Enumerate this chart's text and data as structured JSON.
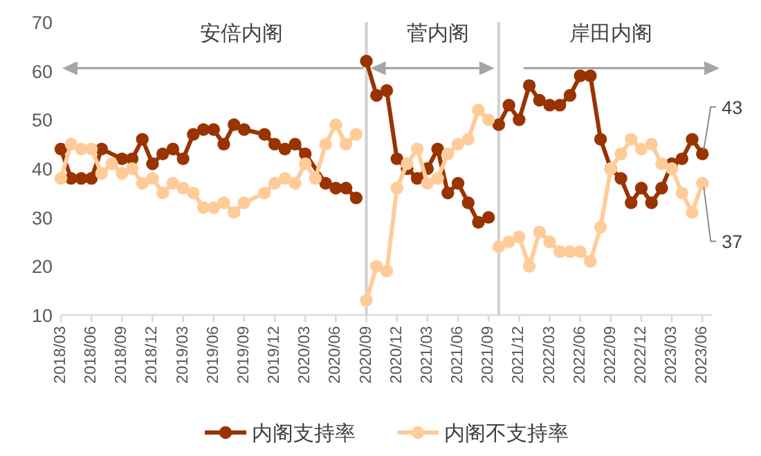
{
  "chart_data": {
    "type": "line",
    "marker": "circle",
    "legend": "bottom",
    "xlim": [
      "2018-03",
      "2023-07"
    ],
    "xticks": [
      {
        "value": "2018-03",
        "label": "2018/03"
      },
      {
        "value": "2018-06",
        "label": "2018/06"
      },
      {
        "value": "2018-09",
        "label": "2018/09"
      },
      {
        "value": "2018-12",
        "label": "2018/12"
      },
      {
        "value": "2019-03",
        "label": "2019/03"
      },
      {
        "value": "2019-06",
        "label": "2019/06"
      },
      {
        "value": "2019-09",
        "label": "2019/09"
      },
      {
        "value": "2019-12",
        "label": "2019/12"
      },
      {
        "value": "2020-03",
        "label": "2020/03"
      },
      {
        "value": "2020-06",
        "label": "2020/06"
      },
      {
        "value": "2020-09",
        "label": "2020/09"
      },
      {
        "value": "2020-12",
        "label": "2020/12"
      },
      {
        "value": "2021-03",
        "label": "2021/03"
      },
      {
        "value": "2021-06",
        "label": "2021/06"
      },
      {
        "value": "2021-09",
        "label": "2021/09"
      },
      {
        "value": "2021-12",
        "label": "2021/12"
      },
      {
        "value": "2022-03",
        "label": "2022/03"
      },
      {
        "value": "2022-06",
        "label": "2022/06"
      },
      {
        "value": "2022-09",
        "label": "2022/09"
      },
      {
        "value": "2022-12",
        "label": "2022/12"
      },
      {
        "value": "2023-03",
        "label": "2023/03"
      },
      {
        "value": "2023-06",
        "label": "2023/06"
      }
    ],
    "ylim": [
      10,
      70
    ],
    "yticks": [
      10,
      20,
      30,
      40,
      50,
      60,
      70
    ],
    "series": [
      {
        "name": "内阁支持率",
        "color": "#993300",
        "x": [
          "2018-03",
          "2018-04",
          "2018-05",
          "2018-06",
          "2018-07",
          "2018-09",
          "2018-10",
          "2018-11",
          "2018-12",
          "2019-01",
          "2019-02",
          "2019-03",
          "2019-04",
          "2019-05",
          "2019-06",
          "2019-07",
          "2019-08",
          "2019-09",
          "2019-11",
          "2019-12",
          "2020-01",
          "2020-02",
          "2020-03",
          "2020-05",
          "2020-06",
          "2020-07",
          "2020-08",
          "2020-09",
          "2020-10",
          "2020-11",
          "2020-12",
          "2021-01",
          "2021-02",
          "2021-03",
          "2021-04",
          "2021-05",
          "2021-06",
          "2021-07",
          "2021-08",
          "2021-09",
          "2021-10",
          "2021-11",
          "2021-12",
          "2022-01",
          "2022-02",
          "2022-03",
          "2022-04",
          "2022-05",
          "2022-06",
          "2022-07",
          "2022-08",
          "2022-09",
          "2022-10",
          "2022-11",
          "2022-12",
          "2023-01",
          "2023-02",
          "2023-03",
          "2023-04",
          "2023-05",
          "2023-06"
        ],
        "values": [
          44,
          38,
          38,
          38,
          44,
          42,
          42,
          46,
          41,
          43,
          44,
          42,
          47,
          48,
          48,
          45,
          49,
          48,
          47,
          45,
          44,
          45,
          43,
          37,
          36,
          36,
          34,
          62,
          55,
          56,
          42,
          40,
          38,
          40,
          44,
          35,
          37,
          33,
          29,
          30,
          49,
          53,
          50,
          57,
          54,
          53,
          53,
          55,
          59,
          59,
          46,
          40,
          38,
          33,
          36,
          33,
          36,
          41,
          42,
          46,
          43
        ]
      },
      {
        "name": "内阁不支持率",
        "color": "#ffcc99",
        "x": [
          "2018-03",
          "2018-04",
          "2018-05",
          "2018-06",
          "2018-07",
          "2018-08",
          "2018-09",
          "2018-10",
          "2018-11",
          "2018-12",
          "2019-01",
          "2019-02",
          "2019-03",
          "2019-04",
          "2019-05",
          "2019-06",
          "2019-07",
          "2019-08",
          "2019-09",
          "2019-11",
          "2019-12",
          "2020-01",
          "2020-02",
          "2020-03",
          "2020-04",
          "2020-05",
          "2020-06",
          "2020-07",
          "2020-08",
          "2020-09",
          "2020-10",
          "2020-11",
          "2020-12",
          "2021-01",
          "2021-02",
          "2021-03",
          "2021-04",
          "2021-05",
          "2021-06",
          "2021-07",
          "2021-08",
          "2021-09",
          "2021-10",
          "2021-11",
          "2021-12",
          "2022-01",
          "2022-02",
          "2022-03",
          "2022-04",
          "2022-05",
          "2022-06",
          "2022-07",
          "2022-08",
          "2022-09",
          "2022-10",
          "2022-11",
          "2022-12",
          "2023-01",
          "2023-02",
          "2023-03",
          "2023-04",
          "2023-05",
          "2023-06"
        ],
        "values": [
          38,
          45,
          44,
          44,
          39,
          41,
          39,
          40,
          37,
          38,
          35,
          37,
          36,
          35,
          32,
          32,
          33,
          31,
          33,
          35,
          37,
          38,
          37,
          41,
          38,
          45,
          49,
          45,
          47,
          13,
          20,
          19,
          36,
          41,
          44,
          37,
          38,
          43,
          45,
          46,
          52,
          50,
          24,
          25,
          26,
          20,
          27,
          25,
          23,
          23,
          23,
          21,
          28,
          40,
          43,
          46,
          44,
          45,
          41,
          40,
          35,
          31,
          37
        ]
      }
    ],
    "ref_lines": [
      {
        "axis": "x",
        "value": "2020-09",
        "label": null,
        "color": "#d0d0d0"
      },
      {
        "axis": "x",
        "value": "2021-10",
        "label": null,
        "color": "#d0d0d0"
      }
    ],
    "annotations": [
      "安倍内阁",
      "菅内阁",
      "岸田内阁",
      {
        "text": "43",
        "x": "2023-06",
        "y": 43
      },
      {
        "text": "37",
        "x": "2023-06",
        "y": 37
      }
    ]
  }
}
